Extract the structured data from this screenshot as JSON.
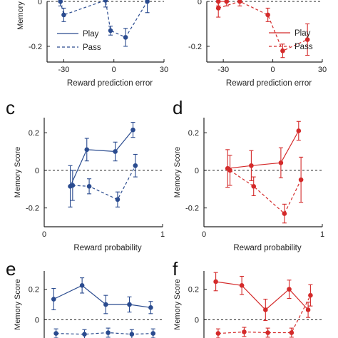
{
  "colors": {
    "blue": "#2a4b8f",
    "red": "#d42a2a",
    "axis": "#222222",
    "zero_line": "#222222"
  },
  "chart_data": [
    {
      "id": "a",
      "panel_label": "",
      "type": "line",
      "ylabel": "Memory",
      "xlabel": "Reward prediction error",
      "xlim": [
        -40,
        30
      ],
      "ylim": [
        -0.27,
        0.0
      ],
      "xticks": [
        -30,
        0,
        30
      ],
      "yticks": [
        0,
        -0.2
      ],
      "color": "blue",
      "legend": {
        "position": "bottom-left",
        "entries": [
          "Play",
          "Pass"
        ]
      },
      "series": [
        {
          "name": "Play",
          "style": "solid",
          "points": []
        },
        {
          "name": "Pass",
          "style": "dashed",
          "points": [
            {
              "x": -32,
              "y": 0.0,
              "err": 0.02
            },
            {
              "x": -30,
              "y": -0.06,
              "err": 0.03
            },
            {
              "x": -5,
              "y": 0.005,
              "err": 0.03
            },
            {
              "x": -2,
              "y": -0.13,
              "err": 0.02
            },
            {
              "x": 7,
              "y": -0.16,
              "err": 0.04
            },
            {
              "x": 20,
              "y": 0.0,
              "err": 0.05
            }
          ]
        }
      ]
    },
    {
      "id": "b",
      "panel_label": "",
      "type": "line",
      "ylabel": "",
      "xlabel": "Reward prediction error",
      "xlim": [
        -40,
        30
      ],
      "ylim": [
        -0.27,
        0.0
      ],
      "xticks": [
        -30,
        0,
        30
      ],
      "yticks": [
        0,
        -0.2
      ],
      "color": "red",
      "legend": {
        "position": "top-right",
        "entries": [
          "Play",
          "Pass"
        ]
      },
      "series": [
        {
          "name": "Play",
          "style": "solid",
          "points": [
            {
              "x": -33,
              "y": 0.0,
              "err": 0.02
            },
            {
              "x": -28,
              "y": 0.0,
              "err": 0.02
            }
          ]
        },
        {
          "name": "Pass",
          "style": "dashed",
          "points": [
            {
              "x": -33,
              "y": -0.03,
              "err": 0.04
            },
            {
              "x": -20,
              "y": 0.0,
              "err": 0.02
            },
            {
              "x": -3,
              "y": -0.06,
              "err": 0.03
            },
            {
              "x": 6,
              "y": -0.22,
              "err": 0.03
            },
            {
              "x": 21,
              "y": -0.17,
              "err": 0.07
            }
          ]
        }
      ]
    },
    {
      "id": "c",
      "panel_label": "c",
      "type": "line",
      "ylabel": "Memory Score",
      "xlabel": "Reward probability",
      "xlim": [
        0,
        1
      ],
      "ylim": [
        -0.3,
        0.28
      ],
      "xticks": [
        0,
        1
      ],
      "yticks": [
        0.2,
        0,
        -0.2
      ],
      "color": "blue",
      "series": [
        {
          "name": "Play",
          "style": "solid",
          "points": [
            {
              "x": 0.22,
              "y": -0.085,
              "err": 0.11
            },
            {
              "x": 0.36,
              "y": 0.11,
              "err": 0.06
            },
            {
              "x": 0.6,
              "y": 0.1,
              "err": 0.05
            },
            {
              "x": 0.75,
              "y": 0.215,
              "err": 0.04
            }
          ]
        },
        {
          "name": "Pass",
          "style": "dashed",
          "points": [
            {
              "x": 0.24,
              "y": -0.08,
              "err": 0.08
            },
            {
              "x": 0.38,
              "y": -0.085,
              "err": 0.04
            },
            {
              "x": 0.62,
              "y": -0.155,
              "err": 0.04
            },
            {
              "x": 0.77,
              "y": 0.025,
              "err": 0.06
            }
          ]
        }
      ]
    },
    {
      "id": "d",
      "panel_label": "d",
      "type": "line",
      "ylabel": "Memory Score",
      "xlabel": "Reward probability",
      "xlim": [
        0,
        1
      ],
      "ylim": [
        -0.3,
        0.28
      ],
      "xticks": [
        0,
        1
      ],
      "yticks": [
        0.2,
        0,
        -0.2
      ],
      "color": "red",
      "series": [
        {
          "name": "Play",
          "style": "solid",
          "points": [
            {
              "x": 0.2,
              "y": 0.01,
              "err": 0.1
            },
            {
              "x": 0.4,
              "y": 0.025,
              "err": 0.08
            },
            {
              "x": 0.65,
              "y": 0.04,
              "err": 0.08
            },
            {
              "x": 0.8,
              "y": 0.21,
              "err": 0.05
            }
          ]
        },
        {
          "name": "Pass",
          "style": "dashed",
          "points": [
            {
              "x": 0.22,
              "y": 0.0,
              "err": 0.08
            },
            {
              "x": 0.42,
              "y": -0.085,
              "err": 0.05
            },
            {
              "x": 0.68,
              "y": -0.23,
              "err": 0.05
            },
            {
              "x": 0.82,
              "y": -0.05,
              "err": 0.12
            }
          ]
        }
      ]
    },
    {
      "id": "e",
      "panel_label": "e",
      "type": "line",
      "ylabel": "Memory Score",
      "xlabel": "",
      "xlim": [
        0,
        1
      ],
      "ylim": [
        -0.12,
        0.32
      ],
      "xticks": [],
      "yticks": [
        0.2,
        0
      ],
      "color": "blue",
      "series": [
        {
          "name": "Play",
          "style": "solid",
          "points": [
            {
              "x": 0.08,
              "y": 0.135,
              "err": 0.07
            },
            {
              "x": 0.32,
              "y": 0.225,
              "err": 0.05
            },
            {
              "x": 0.52,
              "y": 0.1,
              "err": 0.06
            },
            {
              "x": 0.72,
              "y": 0.1,
              "err": 0.05
            },
            {
              "x": 0.9,
              "y": 0.08,
              "err": 0.04
            }
          ]
        },
        {
          "name": "Pass",
          "style": "dashed",
          "points": [
            {
              "x": 0.1,
              "y": -0.09,
              "err": 0.03
            },
            {
              "x": 0.34,
              "y": -0.095,
              "err": 0.03
            },
            {
              "x": 0.54,
              "y": -0.085,
              "err": 0.03
            },
            {
              "x": 0.74,
              "y": -0.095,
              "err": 0.03
            },
            {
              "x": 0.92,
              "y": -0.09,
              "err": 0.03
            }
          ]
        }
      ]
    },
    {
      "id": "f",
      "panel_label": "f",
      "type": "line",
      "ylabel": "Memory Score",
      "xlabel": "",
      "xlim": [
        0,
        1
      ],
      "ylim": [
        -0.12,
        0.32
      ],
      "xticks": [],
      "yticks": [
        0.2,
        0
      ],
      "color": "red",
      "series": [
        {
          "name": "Play",
          "style": "solid",
          "points": [
            {
              "x": 0.1,
              "y": 0.25,
              "err": 0.06
            },
            {
              "x": 0.32,
              "y": 0.225,
              "err": 0.06
            },
            {
              "x": 0.52,
              "y": 0.065,
              "err": 0.07
            },
            {
              "x": 0.72,
              "y": 0.2,
              "err": 0.06
            },
            {
              "x": 0.88,
              "y": 0.065,
              "err": 0.05
            }
          ]
        },
        {
          "name": "Pass",
          "style": "dashed",
          "points": [
            {
              "x": 0.12,
              "y": -0.09,
              "err": 0.03
            },
            {
              "x": 0.34,
              "y": -0.08,
              "err": 0.03
            },
            {
              "x": 0.54,
              "y": -0.085,
              "err": 0.03
            },
            {
              "x": 0.74,
              "y": -0.085,
              "err": 0.03
            },
            {
              "x": 0.9,
              "y": 0.16,
              "err": 0.07
            }
          ]
        }
      ]
    }
  ]
}
